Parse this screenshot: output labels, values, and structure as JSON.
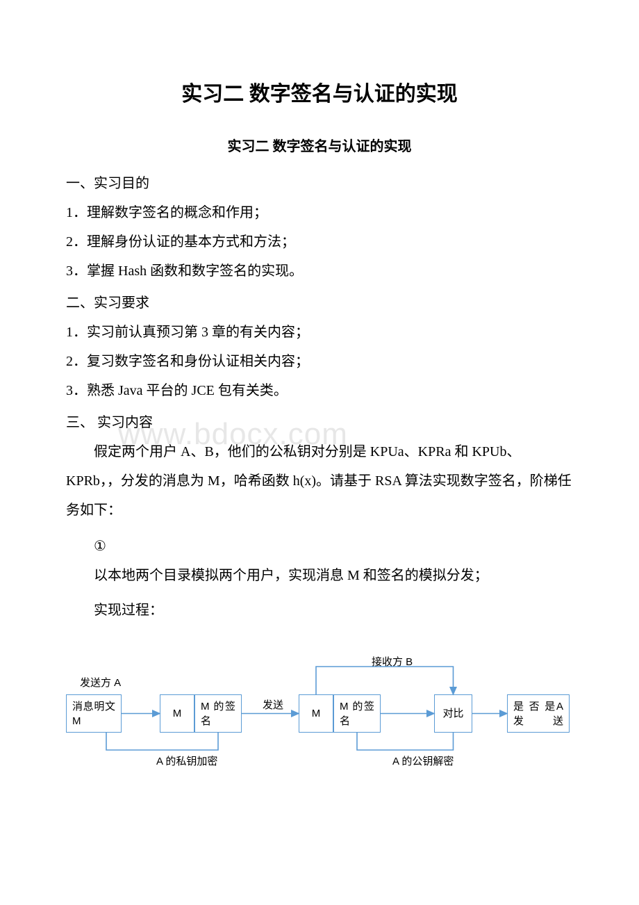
{
  "title": "实习二 数字签名与认证的实现",
  "subtitle": "实习二 数字签名与认证的实现",
  "sections": {
    "s1": {
      "heading": "一、实习目的",
      "items": [
        "1．理解数字签名的概念和作用；",
        "2．理解身份认证的基本方式和方法；",
        "3．掌握 Hash 函数和数字签名的实现。"
      ]
    },
    "s2": {
      "heading": "二、实习要求",
      "items": [
        "1．实习前认真预习第 3 章的有关内容；",
        "2．复习数字签名和身份认证相关内容；",
        "3．熟悉 Java 平台的 JCE 包有关类。"
      ]
    },
    "s3": {
      "heading": "三、 实习内容",
      "para1": "假定两个用户 A、B，他们的公私钥对分别是 KPUa、KPRa 和 KPUb、KPRb，，分发的消息为 M，哈希函数 h(x)。请基于 RSA 算法实现数字签名，阶梯任务如下：",
      "mark": "①",
      "para2": "以本地两个目录模拟两个用户，实现消息 M 和签名的模拟分发；",
      "para3": "实现过程："
    }
  },
  "watermark": "www.bdocx.com",
  "diagram": {
    "color": "#5b9bd5",
    "labels": {
      "sender": "发送方 A",
      "receiver": "接收方 B",
      "send": "发送",
      "encrypt": "A 的私钥加密",
      "decrypt": "A 的公钥解密"
    },
    "boxes": {
      "b1": "消息明文 M",
      "b2": "M",
      "b3": "M 的签名",
      "b4": "M",
      "b5": "M 的签名",
      "b6": "对比",
      "b7": "是 否 是A 发 送"
    }
  }
}
